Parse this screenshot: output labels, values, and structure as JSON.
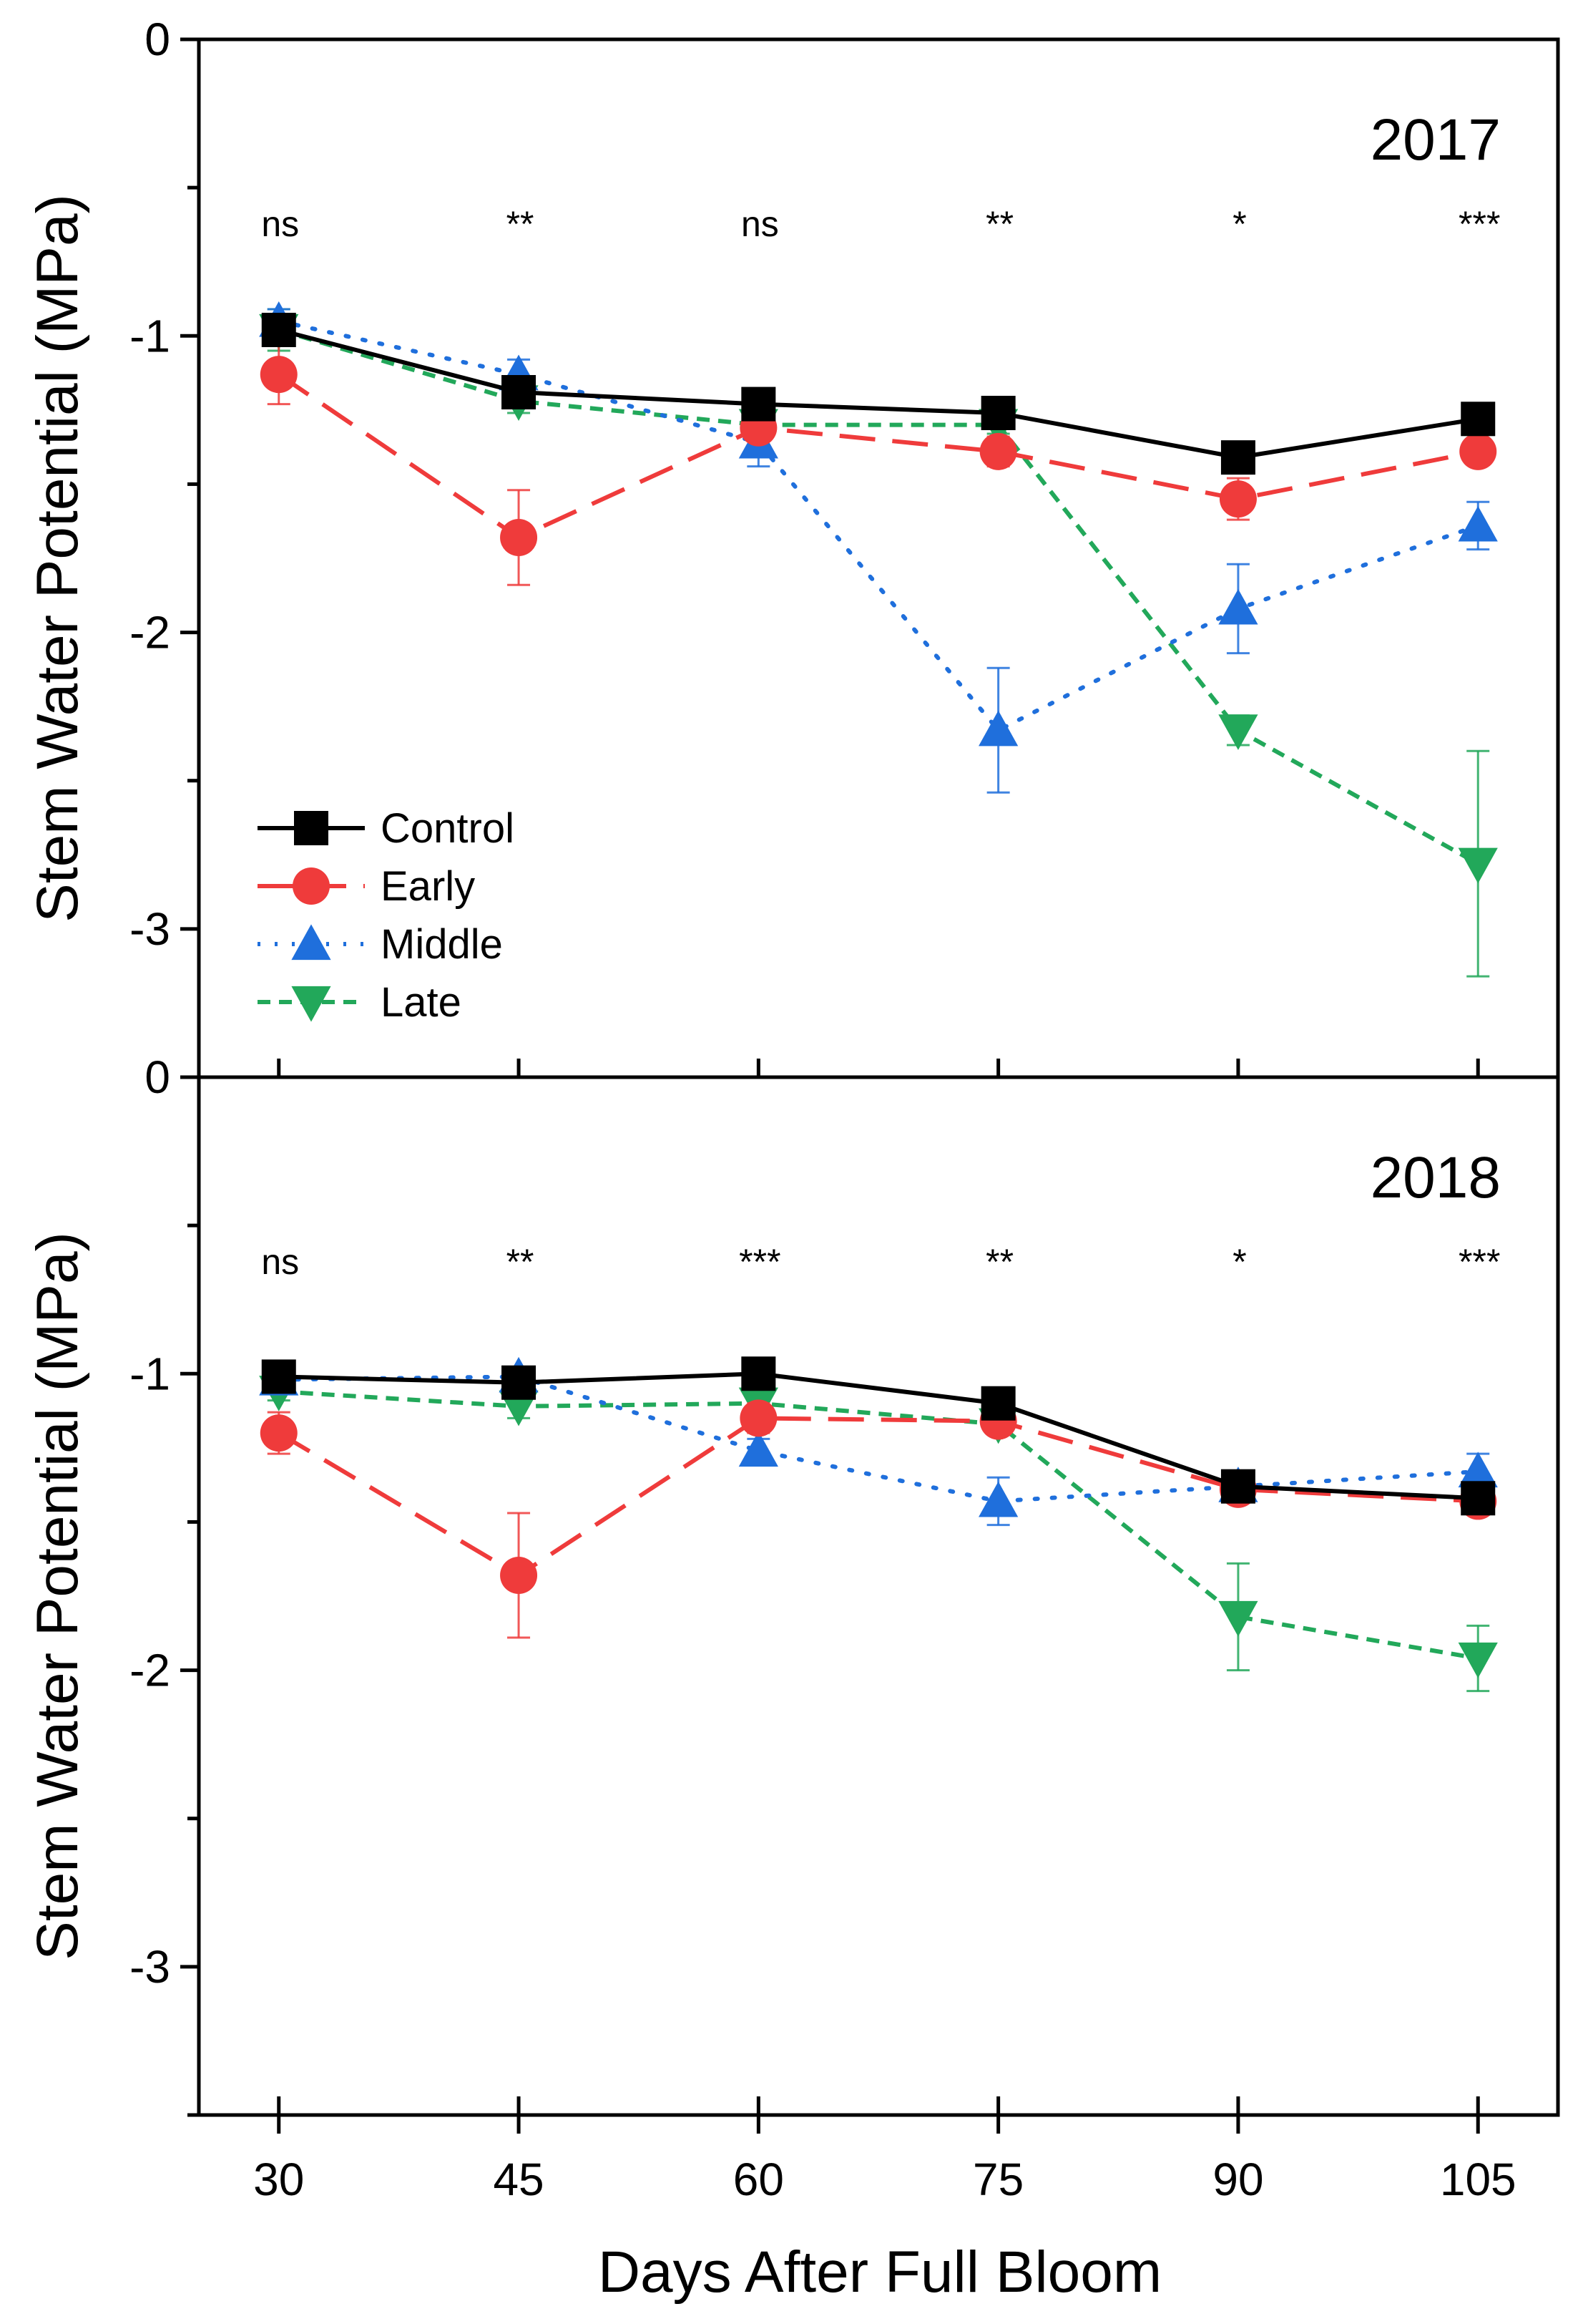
{
  "chart_data": {
    "type": "line",
    "xlabel": "Days After Full Bloom",
    "ylabel": "Stem Water Potential (MPa)",
    "x": [
      30,
      45,
      60,
      75,
      90,
      105
    ],
    "xlim": [
      25,
      110
    ],
    "ylim": [
      -3.5,
      0
    ],
    "yticks": [
      0,
      -1,
      -2,
      -3
    ],
    "yticklabels": [
      "0",
      "-1",
      "-2",
      "-3"
    ],
    "top_axis_label": "0",
    "legend": {
      "placement": "lower-left",
      "panel": 0
    },
    "series_styles": [
      {
        "name": "Control",
        "color": "#000000",
        "dash": "none",
        "marker": "square"
      },
      {
        "name": "Early",
        "color": "#ef3b3b",
        "dash": "50,24",
        "marker": "circle"
      },
      {
        "name": "Middle",
        "color": "#1f6fdc",
        "dash": "4,20",
        "marker": "triangle-up"
      },
      {
        "name": "Late",
        "color": "#22a85a",
        "dash": "18,12",
        "marker": "triangle-down"
      }
    ],
    "panels": [
      {
        "title": "2017",
        "significance": [
          "ns",
          "**",
          "ns",
          "**",
          "*",
          "***"
        ],
        "series": [
          {
            "name": "Control",
            "values": [
              -0.98,
              -1.19,
              -1.23,
              -1.26,
              -1.41,
              -1.28
            ],
            "errors": [
              0.03,
              0.03,
              0.03,
              0.03,
              0.03,
              0.03
            ]
          },
          {
            "name": "Early",
            "values": [
              -1.13,
              -1.68,
              -1.31,
              -1.39,
              -1.55,
              -1.39
            ],
            "errors": [
              0.1,
              0.16,
              0.04,
              0.05,
              0.07,
              0.03
            ]
          },
          {
            "name": "Middle",
            "values": [
              -0.95,
              -1.13,
              -1.36,
              -2.33,
              -1.92,
              -1.64
            ],
            "errors": [
              0.04,
              0.05,
              0.08,
              0.21,
              0.15,
              0.08
            ]
          },
          {
            "name": "Late",
            "values": [
              -0.98,
              -1.22,
              -1.3,
              -1.3,
              -2.33,
              -2.78
            ],
            "errors": [
              0.07,
              0.04,
              0.03,
              0.03,
              0.05,
              0.38
            ]
          }
        ]
      },
      {
        "title": "2018",
        "significance": [
          "ns",
          "**",
          "***",
          "**",
          "*",
          "***"
        ],
        "series": [
          {
            "name": "Control",
            "values": [
              -1.01,
              -1.03,
              -1.0,
              -1.1,
              -1.38,
              -1.42
            ],
            "errors": [
              0.02,
              0.02,
              0.02,
              0.03,
              0.03,
              0.03
            ]
          },
          {
            "name": "Early",
            "values": [
              -1.2,
              -1.68,
              -1.15,
              -1.16,
              -1.39,
              -1.43
            ],
            "errors": [
              0.07,
              0.21,
              0.05,
              0.04,
              0.03,
              0.03
            ]
          },
          {
            "name": "Middle",
            "values": [
              -1.02,
              -1.01,
              -1.26,
              -1.43,
              -1.38,
              -1.33
            ],
            "errors": [
              0.03,
              0.03,
              0.04,
              0.08,
              0.04,
              0.06
            ]
          },
          {
            "name": "Late",
            "values": [
              -1.06,
              -1.11,
              -1.1,
              -1.17,
              -1.82,
              -1.96
            ],
            "errors": [
              0.03,
              0.04,
              0.03,
              0.03,
              0.18,
              0.11
            ]
          }
        ]
      }
    ]
  }
}
